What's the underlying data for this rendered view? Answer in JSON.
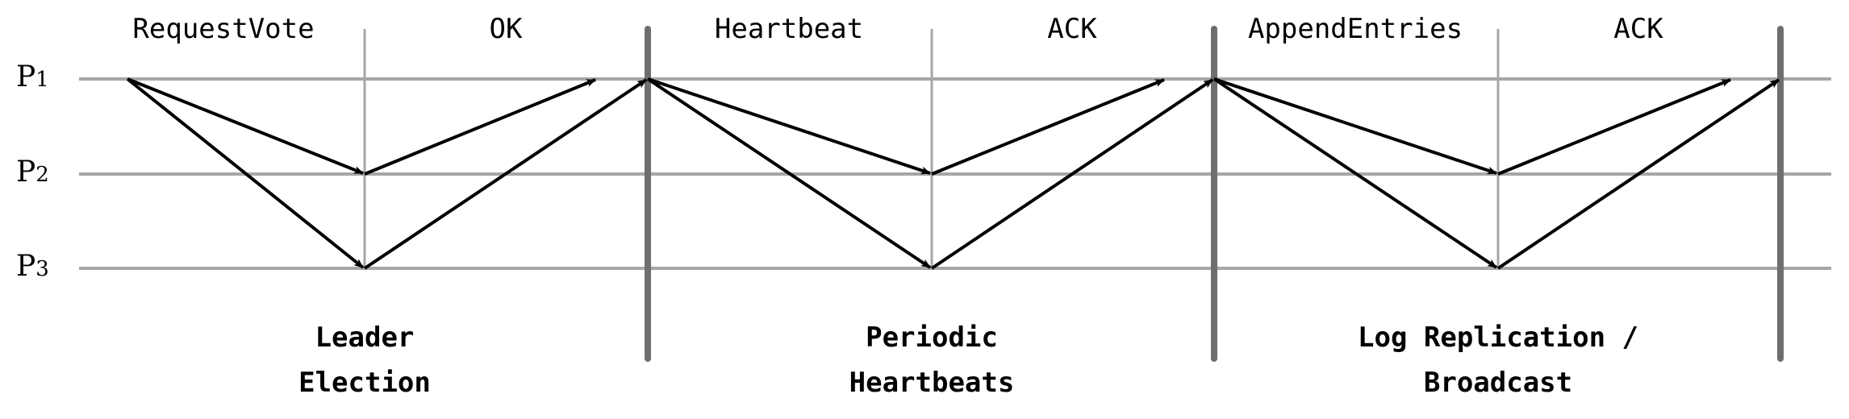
{
  "processes": [
    {
      "id": "p1",
      "name": "P",
      "sub": "1"
    },
    {
      "id": "p2",
      "name": "P",
      "sub": "2"
    },
    {
      "id": "p3",
      "name": "P",
      "sub": "3"
    }
  ],
  "phases": [
    {
      "id": "election",
      "send_label": "RequestVote",
      "reply_label": "OK",
      "title_lines": [
        "Leader",
        "Election"
      ]
    },
    {
      "id": "heartbeat",
      "send_label": "Heartbeat",
      "reply_label": "ACK",
      "title_lines": [
        "Periodic",
        "Heartbeats"
      ]
    },
    {
      "id": "replication",
      "send_label": "AppendEntries",
      "reply_label": "ACK",
      "title_lines": [
        "Log Replication /",
        "Broadcast"
      ]
    }
  ],
  "messages": [
    {
      "phase": 0,
      "from": "p1",
      "to": "p2",
      "kind": "send"
    },
    {
      "phase": 0,
      "from": "p1",
      "to": "p3",
      "kind": "send"
    },
    {
      "phase": 0,
      "from": "p2",
      "to": "p1",
      "kind": "reply"
    },
    {
      "phase": 0,
      "from": "p3",
      "to": "p1",
      "kind": "reply"
    },
    {
      "phase": 1,
      "from": "p1",
      "to": "p2",
      "kind": "send"
    },
    {
      "phase": 1,
      "from": "p1",
      "to": "p3",
      "kind": "send"
    },
    {
      "phase": 1,
      "from": "p2",
      "to": "p1",
      "kind": "reply"
    },
    {
      "phase": 1,
      "from": "p3",
      "to": "p1",
      "kind": "reply"
    },
    {
      "phase": 2,
      "from": "p1",
      "to": "p2",
      "kind": "send"
    },
    {
      "phase": 2,
      "from": "p1",
      "to": "p3",
      "kind": "send"
    },
    {
      "phase": 2,
      "from": "p2",
      "to": "p1",
      "kind": "reply"
    },
    {
      "phase": 2,
      "from": "p3",
      "to": "p1",
      "kind": "reply"
    }
  ],
  "colors": {
    "timeline": "#a6a6a6",
    "barrier": "#6e6e6e",
    "arrow": "#000000"
  }
}
